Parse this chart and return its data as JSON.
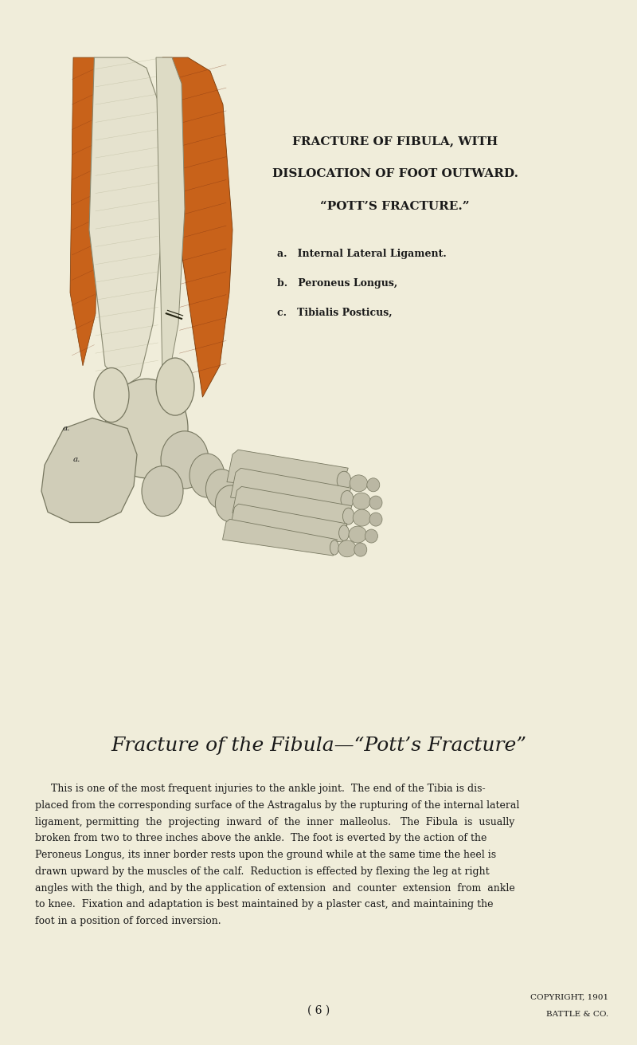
{
  "background_color": "#f0edda",
  "page_width": 8.0,
  "page_height": 13.11,
  "title_line1": "FRACTURE OF FIBULA, WITH",
  "title_line2": "DISLOCATION OF FOOT OUTWARD.",
  "title_line3": "“POTT’S FRACTURE.”",
  "label_a": "a.   Internal Lateral Ligament.",
  "label_b": "b.   Peroneus Longus,",
  "label_c": "c.   Tibialis Posticus,",
  "section_title": "Fracture of the Fibula—“Pott’s Fracture”",
  "body_lines": [
    "     This is one of the most frequent injuries to the ankle joint.  The end of the Tibia is dis-",
    "placed from the corresponding surface of the Astragalus by the rupturing of the internal lateral",
    "ligament, permitting  the  projecting  inward  of  the  inner  malleolus.   The  Fibula  is  usually",
    "broken from two to three inches above the ankle.  The foot is everted by the action of the",
    "Peroneus Longus, its inner border rests upon the ground while at the same time the heel is",
    "drawn upward by the muscles of the calf.  Reduction is effected by flexing the leg at right",
    "angles with the thigh, and by the application of extension  and  counter  extension  from  ankle",
    "to knee.  Fixation and adaptation is best maintained by a plaster cast, and maintaining the",
    "foot in a position of forced inversion."
  ],
  "page_number": "( 6 )",
  "copyright_line1": "COPYRIGHT, 1901",
  "copyright_line2": "BATTLE & CO.",
  "text_color": "#1a1a1a",
  "title_fontsize": 11.0,
  "label_fontsize": 9.0,
  "section_title_fontsize": 18,
  "body_fontsize": 9.0,
  "page_num_fontsize": 10,
  "copyright_fontsize": 7.5
}
